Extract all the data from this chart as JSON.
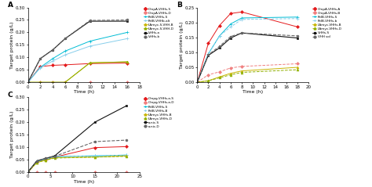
{
  "panel_A": {
    "title": "A",
    "xlabel": "Time (h)",
    "ylabel": "Target protein (g/L)",
    "xlim": [
      0,
      18
    ],
    "ylim": [
      0,
      0.3
    ],
    "yticks": [
      0.0,
      0.05,
      0.1,
      0.15,
      0.2,
      0.25,
      0.3
    ],
    "xticks": [
      0,
      2,
      4,
      6,
      8,
      10,
      12,
      14,
      16,
      18
    ],
    "series": [
      {
        "label": "OmpA-VHHs-S",
        "color": "#e41a1c",
        "marker": "D",
        "lw": 0.7,
        "ms": 2.0,
        "ls": "-",
        "x": [
          0,
          2,
          4,
          6,
          10,
          16
        ],
        "y": [
          0.0,
          0.063,
          0.068,
          0.07,
          0.075,
          0.077
        ]
      },
      {
        "label": "OmpA-VHHs-D",
        "color": "#f08080",
        "marker": "D",
        "lw": 0.7,
        "ms": 2.0,
        "ls": "-",
        "x": [
          0,
          2,
          4,
          6,
          10,
          16
        ],
        "y": [
          0.0,
          0.0,
          0.0,
          0.0,
          0.0,
          0.0
        ]
      },
      {
        "label": "PelB-VHHs-S",
        "color": "#00bcd4",
        "marker": "+",
        "lw": 0.7,
        "ms": 3.0,
        "ls": "-",
        "x": [
          0,
          2,
          4,
          6,
          10,
          16
        ],
        "y": [
          0.0,
          0.06,
          0.095,
          0.125,
          0.165,
          0.2
        ]
      },
      {
        "label": "PelB-VHHb-alt",
        "color": "#87ceeb",
        "marker": "+",
        "lw": 0.7,
        "ms": 3.0,
        "ls": "-",
        "x": [
          0,
          2,
          4,
          6,
          10,
          16
        ],
        "y": [
          0.0,
          0.058,
          0.085,
          0.11,
          0.145,
          0.175
        ]
      },
      {
        "label": "LAmyc-S-VHH-B",
        "color": "#c8b400",
        "marker": "^",
        "lw": 0.7,
        "ms": 2.0,
        "ls": "-",
        "x": [
          0,
          2,
          4,
          6,
          10,
          16
        ],
        "y": [
          0.0,
          0.0,
          0.0,
          0.0,
          0.078,
          0.082
        ]
      },
      {
        "label": "LAmyc-S-VHH-D",
        "color": "#90b000",
        "marker": "^",
        "lw": 0.7,
        "ms": 2.0,
        "ls": "-",
        "x": [
          0,
          2,
          4,
          6,
          10,
          16
        ],
        "y": [
          0.0,
          0.0,
          0.0,
          0.0,
          0.078,
          0.082
        ]
      },
      {
        "label": "VHHs-a",
        "color": "#111111",
        "marker": "s",
        "lw": 0.8,
        "ms": 2.0,
        "ls": "-",
        "x": [
          0,
          2,
          4,
          6,
          10,
          16
        ],
        "y": [
          0.0,
          0.095,
          0.13,
          0.175,
          0.245,
          0.245
        ]
      },
      {
        "label": "VHHs-b",
        "color": "#666666",
        "marker": "o",
        "lw": 0.8,
        "ms": 2.0,
        "ls": "--",
        "x": [
          0,
          2,
          4,
          6,
          10,
          16
        ],
        "y": [
          0.0,
          0.095,
          0.13,
          0.175,
          0.248,
          0.25
        ]
      }
    ]
  },
  "panel_B": {
    "title": "B",
    "xlabel": "Time (h)",
    "ylabel": "Target protein (g/L)",
    "xlim": [
      0,
      20
    ],
    "ylim": [
      0,
      0.25
    ],
    "yticks": [
      0.0,
      0.05,
      0.1,
      0.15,
      0.2,
      0.25
    ],
    "xticks": [
      0,
      2,
      4,
      6,
      8,
      10,
      12,
      14,
      16,
      18,
      20
    ],
    "series": [
      {
        "label": "OmpA-VHHs-A",
        "color": "#e41a1c",
        "marker": "D",
        "lw": 0.7,
        "ms": 2.0,
        "ls": "-",
        "x": [
          0,
          2,
          4,
          6,
          8,
          18
        ],
        "y": [
          0.0,
          0.13,
          0.19,
          0.23,
          0.235,
          0.185
        ]
      },
      {
        "label": "OmpA-VHHs-B",
        "color": "#f08080",
        "marker": "D",
        "lw": 0.7,
        "ms": 2.0,
        "ls": "--",
        "x": [
          0,
          2,
          4,
          6,
          8,
          18
        ],
        "y": [
          0.0,
          0.025,
          0.035,
          0.048,
          0.053,
          0.062
        ]
      },
      {
        "label": "PelB-VHHs-S",
        "color": "#00bcd4",
        "marker": "+",
        "lw": 0.7,
        "ms": 3.0,
        "ls": "-",
        "x": [
          0,
          2,
          4,
          6,
          8,
          18
        ],
        "y": [
          0.0,
          0.095,
          0.155,
          0.195,
          0.215,
          0.218
        ]
      },
      {
        "label": "PelB-VHHs-b",
        "color": "#87ceeb",
        "marker": "+",
        "lw": 0.7,
        "ms": 3.0,
        "ls": "--",
        "x": [
          0,
          2,
          4,
          6,
          8,
          18
        ],
        "y": [
          0.0,
          0.095,
          0.155,
          0.185,
          0.21,
          0.213
        ]
      },
      {
        "label": "LAmyc-VHHs-B",
        "color": "#c8b400",
        "marker": "^",
        "lw": 0.7,
        "ms": 2.0,
        "ls": "-",
        "x": [
          0,
          2,
          4,
          6,
          8,
          18
        ],
        "y": [
          0.0,
          0.005,
          0.018,
          0.03,
          0.038,
          0.05
        ]
      },
      {
        "label": "LAmyc-VHHs-D",
        "color": "#90b000",
        "marker": "^",
        "lw": 0.7,
        "ms": 2.0,
        "ls": "--",
        "x": [
          0,
          2,
          4,
          6,
          8,
          18
        ],
        "y": [
          0.0,
          0.005,
          0.015,
          0.025,
          0.033,
          0.042
        ]
      },
      {
        "label": "VHHs-S",
        "color": "#111111",
        "marker": "s",
        "lw": 0.8,
        "ms": 2.0,
        "ls": "-",
        "x": [
          0,
          2,
          4,
          6,
          8,
          18
        ],
        "y": [
          0.0,
          0.09,
          0.115,
          0.148,
          0.165,
          0.148
        ]
      },
      {
        "label": "VHH sol",
        "color": "#666666",
        "marker": "o",
        "lw": 0.8,
        "ms": 2.0,
        "ls": "--",
        "x": [
          0,
          2,
          4,
          6,
          8,
          18
        ],
        "y": [
          0.0,
          0.092,
          0.12,
          0.153,
          0.165,
          0.155
        ]
      }
    ]
  },
  "panel_C": {
    "title": "C",
    "xlabel": "Time (h)",
    "ylabel": "Target protein (g/L)",
    "xlim": [
      0,
      25
    ],
    "ylim": [
      0,
      0.3
    ],
    "yticks": [
      0.0,
      0.05,
      0.1,
      0.15,
      0.2,
      0.25,
      0.3
    ],
    "xticks": [
      0,
      5,
      10,
      15,
      20,
      25
    ],
    "series": [
      {
        "label": "Ompg-VHHs-a-S",
        "color": "#e41a1c",
        "marker": "D",
        "lw": 0.7,
        "ms": 2.0,
        "ls": "-",
        "x": [
          0,
          2,
          4,
          6,
          15,
          22
        ],
        "y": [
          0.0,
          0.04,
          0.05,
          0.06,
          0.098,
          0.102
        ]
      },
      {
        "label": "Ompg-VHHs-a-D",
        "color": "#f08080",
        "marker": "D",
        "lw": 0.7,
        "ms": 2.0,
        "ls": "--",
        "x": [
          0,
          2,
          4,
          6,
          15,
          22
        ],
        "y": [
          0.0,
          0.0,
          0.0,
          0.0,
          0.0,
          0.0
        ]
      },
      {
        "label": "PelB-VHHs-S",
        "color": "#00bcd4",
        "marker": "+",
        "lw": 0.7,
        "ms": 3.0,
        "ls": "-",
        "x": [
          0,
          2,
          4,
          6,
          15,
          22
        ],
        "y": [
          0.0,
          0.043,
          0.052,
          0.062,
          0.065,
          0.068
        ]
      },
      {
        "label": "PelB-VHHs-B",
        "color": "#87ceeb",
        "marker": "+",
        "lw": 0.7,
        "ms": 3.0,
        "ls": "--",
        "x": [
          0,
          2,
          4,
          6,
          15,
          22
        ],
        "y": [
          0.0,
          0.043,
          0.052,
          0.062,
          0.065,
          0.068
        ]
      },
      {
        "label": "LAmyc-VHHs-B",
        "color": "#c8b400",
        "marker": "^",
        "lw": 0.7,
        "ms": 2.0,
        "ls": "-",
        "x": [
          0,
          2,
          4,
          6,
          15,
          22
        ],
        "y": [
          0.0,
          0.038,
          0.048,
          0.058,
          0.06,
          0.065
        ]
      },
      {
        "label": "LAmyc-VHHs-D",
        "color": "#90b000",
        "marker": "^",
        "lw": 0.7,
        "ms": 2.0,
        "ls": "--",
        "x": [
          0,
          2,
          4,
          6,
          15,
          22
        ],
        "y": [
          0.0,
          0.038,
          0.048,
          0.056,
          0.06,
          0.063
        ]
      },
      {
        "label": "a-nic-S",
        "color": "#111111",
        "marker": "s",
        "lw": 0.8,
        "ms": 2.0,
        "ls": "-",
        "x": [
          0,
          2,
          4,
          6,
          15,
          22
        ],
        "y": [
          0.0,
          0.045,
          0.055,
          0.065,
          0.2,
          0.265
        ]
      },
      {
        "label": "a-nic-D",
        "color": "#666666",
        "marker": "o",
        "lw": 0.8,
        "ms": 2.0,
        "ls": "--",
        "x": [
          0,
          2,
          4,
          6,
          15,
          22
        ],
        "y": [
          0.0,
          0.045,
          0.055,
          0.063,
          0.122,
          0.128
        ]
      }
    ]
  },
  "bg": "#ffffff",
  "fs": 4.5,
  "tfs": 4.0,
  "lfs": 3.0
}
